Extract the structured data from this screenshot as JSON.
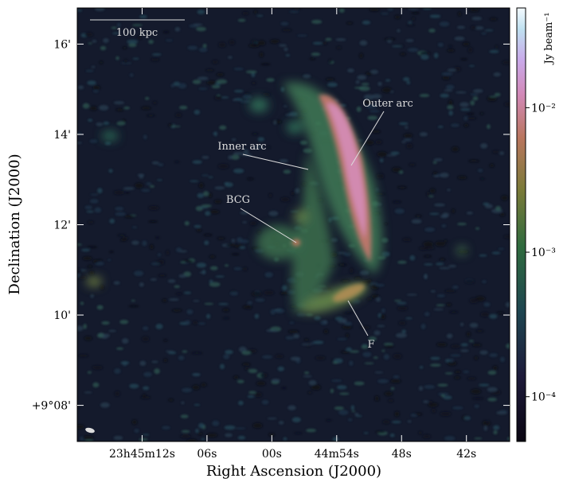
{
  "chart_data": {
    "type": "image",
    "xlabel": "Right Ascension (J2000)",
    "ylabel": "Declination (J2000)",
    "xlim": [
      78,
      38
    ],
    "xticks": [
      {
        "value": 72,
        "label": "23h45m12s"
      },
      {
        "value": 66,
        "label": "06s"
      },
      {
        "value": 60,
        "label": "00s"
      },
      {
        "value": 54,
        "label": "44m54s"
      },
      {
        "value": 48,
        "label": "48s"
      },
      {
        "value": 42,
        "label": "42s"
      }
    ],
    "ylim": [
      7.2,
      16.8
    ],
    "yticks": [
      {
        "value": 8,
        "label": "+9°08'"
      },
      {
        "value": 10,
        "label": "10'"
      },
      {
        "value": 12,
        "label": "12'"
      },
      {
        "value": 14,
        "label": "14'"
      },
      {
        "value": 16,
        "label": "16'"
      }
    ],
    "colorbar": {
      "label": "Jy beam⁻¹",
      "log": true,
      "lim": [
        4.9e-05,
        0.049
      ],
      "ticks": [
        {
          "value": 0.0001,
          "label": "10⁻⁴"
        },
        {
          "value": 0.001,
          "label": "10⁻³"
        },
        {
          "value": 0.01,
          "label": "10⁻²"
        }
      ]
    },
    "annotations": [
      "Outer arc",
      "Inner arc",
      "BCG",
      "F"
    ],
    "scale_bar": "100 kpc"
  }
}
